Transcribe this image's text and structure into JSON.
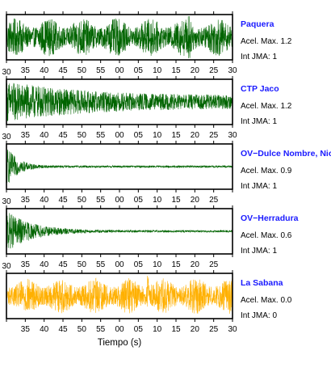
{
  "chart_data": {
    "type": "line",
    "xlabel": "Tiempo (s)",
    "panels": [
      {
        "station": "Paquera",
        "acel_label": "Acel. Max. 1.2",
        "jma_label": "Int JMA: 1",
        "color": "#006400",
        "envelope": {
          "peak": 0.9,
          "decay": 0.0,
          "floor": 0.55
        },
        "spikes": [
          {
            "t": 18.5,
            "amp": 1.1
          }
        ],
        "tick_labels": [
          "35",
          "40",
          "45",
          "50",
          "55",
          "00",
          "05",
          "10",
          "15",
          "20",
          "25",
          "30"
        ],
        "show_left_zero": false
      },
      {
        "station": "CTP Jaco",
        "acel_label": "Acel. Max. 1.2",
        "jma_label": "Int JMA: 1",
        "color": "#006400",
        "envelope": {
          "peak": 1.0,
          "decay": 0.05,
          "floor": 0.3
        },
        "spikes": [],
        "tick_labels": [
          "35",
          "40",
          "45",
          "50",
          "55",
          "00",
          "05",
          "10",
          "15",
          "20",
          "25",
          "30"
        ],
        "show_left_zero": true,
        "left_zero_label": "30"
      },
      {
        "station": "OV−Dulce Nombre, Nicoya",
        "acel_label": "Acel. Max. 0.9",
        "jma_label": "Int JMA: 1",
        "color": "#006400",
        "envelope": {
          "peak": 1.0,
          "decay": 0.35,
          "floor": 0.05
        },
        "spikes": [],
        "tick_labels": [
          "35",
          "40",
          "45",
          "50",
          "55",
          "00",
          "05",
          "10",
          "15",
          "20",
          "25"
        ],
        "show_left_zero": true,
        "left_zero_label": "30"
      },
      {
        "station": "OV−Herradura",
        "acel_label": "Acel. Max. 0.6",
        "jma_label": "Int JMA: 1",
        "color": "#006400",
        "envelope": {
          "peak": 1.0,
          "decay": 0.15,
          "floor": 0.05
        },
        "spikes": [],
        "tick_labels": [
          "35",
          "40",
          "45",
          "50",
          "55",
          "00",
          "05",
          "10",
          "15",
          "20",
          "25"
        ],
        "show_left_zero": true,
        "left_zero_label": "30"
      },
      {
        "station": "La Sabana",
        "acel_label": "Acel. Max. 0.0",
        "jma_label": "Int JMA: 0",
        "color": "#ffb000",
        "envelope": {
          "peak": 0.85,
          "decay": 0.0,
          "floor": 0.65
        },
        "spikes": [
          {
            "t": 7.5,
            "amp": 0.95
          }
        ],
        "tick_labels": [
          "35",
          "40",
          "45",
          "50",
          "55",
          "00",
          "05",
          "10",
          "15",
          "20",
          "25",
          "30"
        ],
        "show_left_zero": true,
        "left_zero_label": "30",
        "last_tick_label": "30"
      }
    ]
  }
}
